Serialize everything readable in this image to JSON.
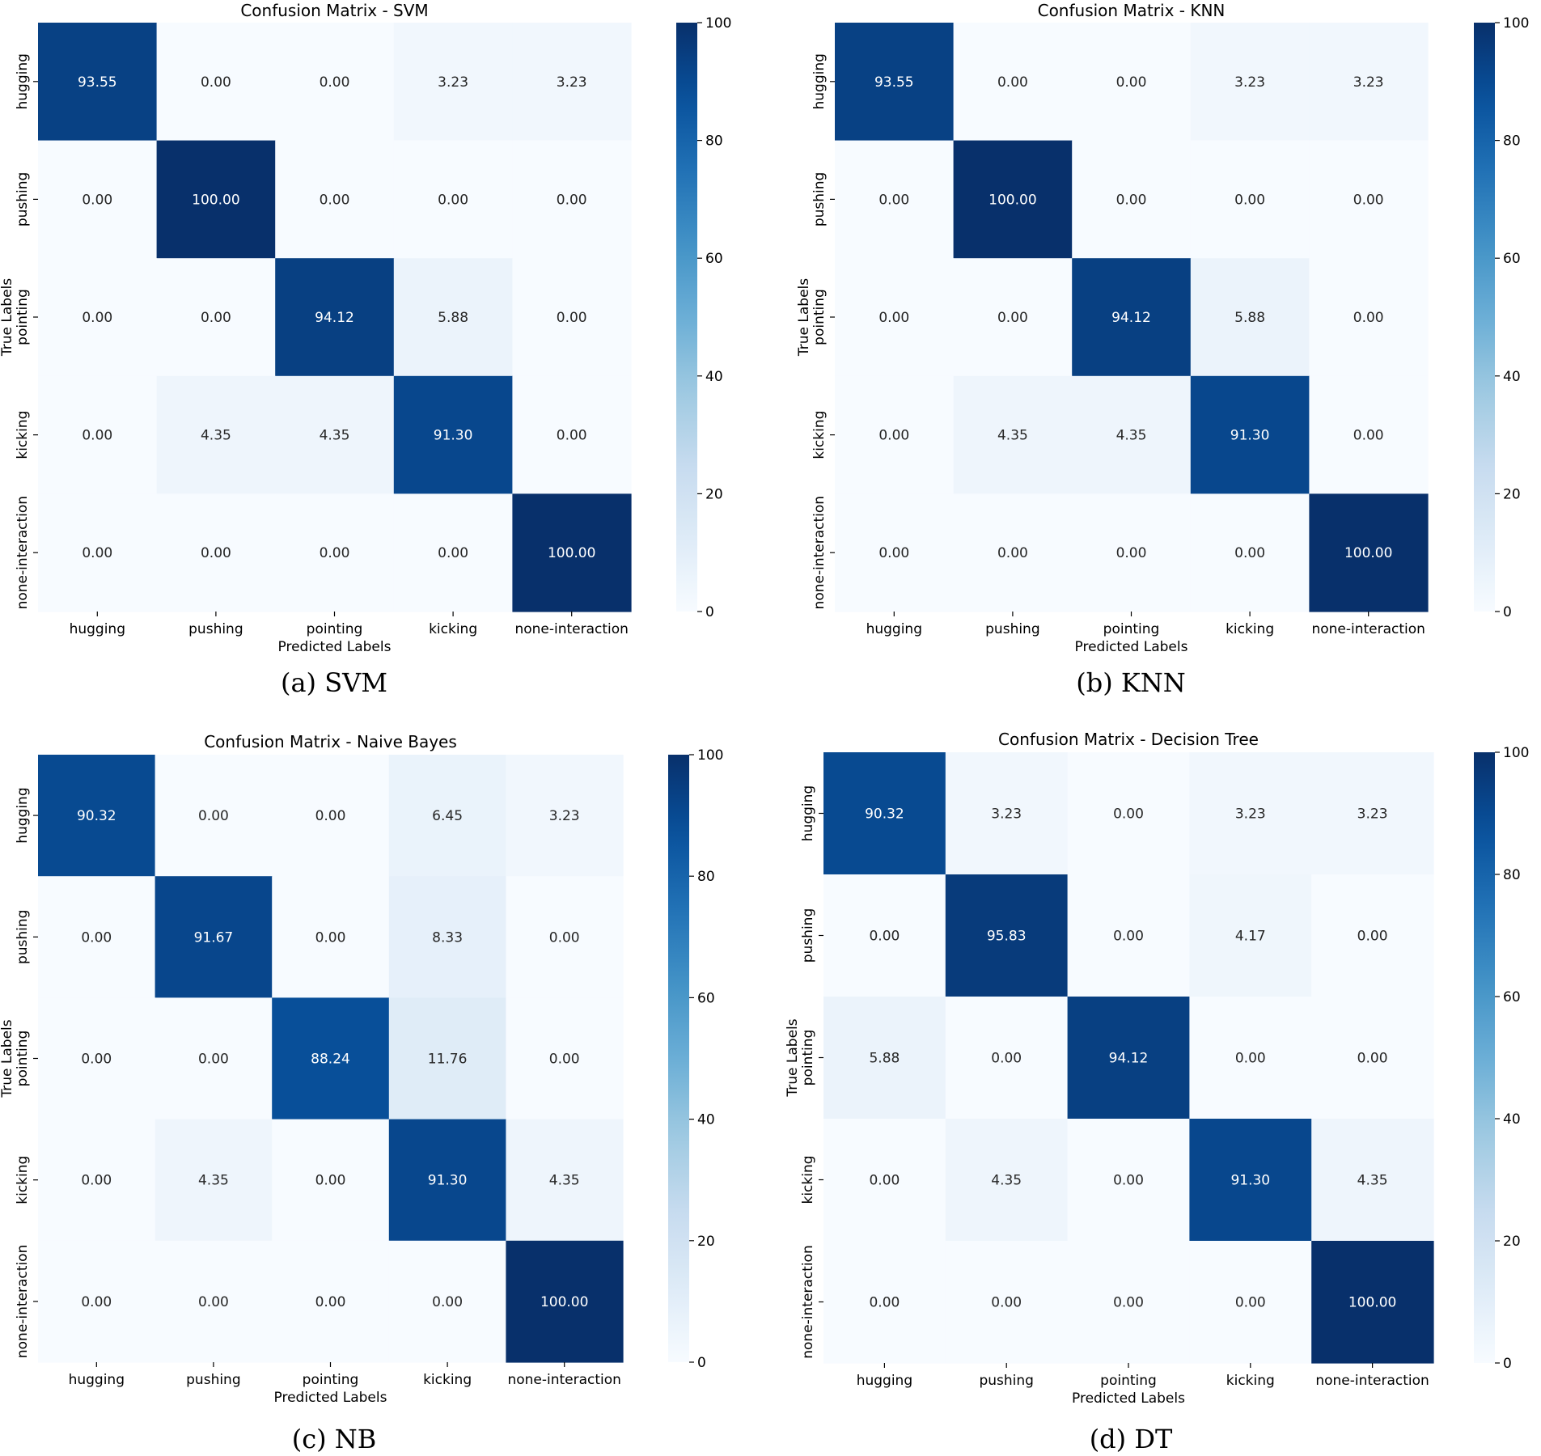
{
  "cmap": {
    "low": "#f7fbff",
    "stops": [
      "#f7fbff",
      "#deebf7",
      "#c6dbef",
      "#9ecae1",
      "#6baed6",
      "#4292c6",
      "#2171b5",
      "#08519c",
      "#08306b"
    ]
  },
  "text_colors": {
    "on_light": "#262626",
    "on_dark": "#ffffff"
  },
  "chart_data": [
    {
      "type": "heatmap",
      "title": "Confusion Matrix - SVM",
      "caption": "(a) SVM",
      "xlabel": "Predicted Labels",
      "ylabel": "True Labels",
      "categories": [
        "hugging",
        "pushing",
        "pointing",
        "kicking",
        "none-interaction"
      ],
      "values": [
        [
          "93.55",
          "0.00",
          "0.00",
          "3.23",
          "3.23"
        ],
        [
          "0.00",
          "100.00",
          "0.00",
          "0.00",
          "0.00"
        ],
        [
          "0.00",
          "0.00",
          "94.12",
          "5.88",
          "0.00"
        ],
        [
          "0.00",
          "4.35",
          "4.35",
          "91.30",
          "0.00"
        ],
        [
          "0.00",
          "0.00",
          "0.00",
          "0.00",
          "100.00"
        ]
      ],
      "colorbar": {
        "range": [
          0,
          100
        ],
        "ticks": [
          "0",
          "20",
          "40",
          "60",
          "80",
          "100"
        ]
      }
    },
    {
      "type": "heatmap",
      "title": "Confusion Matrix - KNN",
      "caption": "(b) KNN",
      "xlabel": "Predicted Labels",
      "ylabel": "True Labels",
      "categories": [
        "hugging",
        "pushing",
        "pointing",
        "kicking",
        "none-interaction"
      ],
      "values": [
        [
          "93.55",
          "0.00",
          "0.00",
          "3.23",
          "3.23"
        ],
        [
          "0.00",
          "100.00",
          "0.00",
          "0.00",
          "0.00"
        ],
        [
          "0.00",
          "0.00",
          "94.12",
          "5.88",
          "0.00"
        ],
        [
          "0.00",
          "4.35",
          "4.35",
          "91.30",
          "0.00"
        ],
        [
          "0.00",
          "0.00",
          "0.00",
          "0.00",
          "100.00"
        ]
      ],
      "colorbar": {
        "range": [
          0,
          100
        ],
        "ticks": [
          "0",
          "20",
          "40",
          "60",
          "80",
          "100"
        ]
      }
    },
    {
      "type": "heatmap",
      "title": "Confusion Matrix - Naive Bayes",
      "caption": "(c) NB",
      "xlabel": "Predicted Labels",
      "ylabel": "True Labels",
      "categories": [
        "hugging",
        "pushing",
        "pointing",
        "kicking",
        "none-interaction"
      ],
      "values": [
        [
          "90.32",
          "0.00",
          "0.00",
          "6.45",
          "3.23"
        ],
        [
          "0.00",
          "91.67",
          "0.00",
          "8.33",
          "0.00"
        ],
        [
          "0.00",
          "0.00",
          "88.24",
          "11.76",
          "0.00"
        ],
        [
          "0.00",
          "4.35",
          "0.00",
          "91.30",
          "4.35"
        ],
        [
          "0.00",
          "0.00",
          "0.00",
          "0.00",
          "100.00"
        ]
      ],
      "colorbar": {
        "range": [
          0,
          100
        ],
        "ticks": [
          "0",
          "20",
          "40",
          "60",
          "80",
          "100"
        ]
      }
    },
    {
      "type": "heatmap",
      "title": "Confusion Matrix - Decision Tree",
      "caption": "(d) DT",
      "xlabel": "Predicted Labels",
      "ylabel": "True Labels",
      "categories": [
        "hugging",
        "pushing",
        "pointing",
        "kicking",
        "none-interaction"
      ],
      "values": [
        [
          "90.32",
          "3.23",
          "0.00",
          "3.23",
          "3.23"
        ],
        [
          "0.00",
          "95.83",
          "0.00",
          "4.17",
          "0.00"
        ],
        [
          "5.88",
          "0.00",
          "94.12",
          "0.00",
          "0.00"
        ],
        [
          "0.00",
          "4.35",
          "0.00",
          "91.30",
          "4.35"
        ],
        [
          "0.00",
          "0.00",
          "0.00",
          "0.00",
          "100.00"
        ]
      ],
      "colorbar": {
        "range": [
          0,
          100
        ],
        "ticks": [
          "0",
          "20",
          "40",
          "60",
          "80",
          "100"
        ]
      }
    }
  ]
}
